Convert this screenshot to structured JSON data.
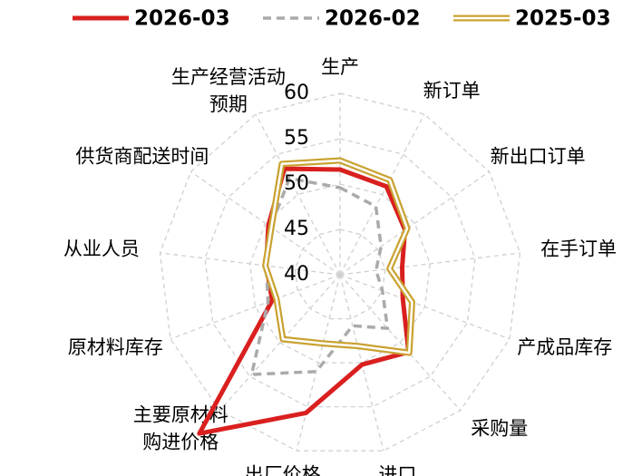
{
  "chart_data": {
    "type": "radar",
    "categories": [
      "生产",
      "新订单",
      "新出口订单",
      "在手订单",
      "产成品库存",
      "采购量",
      "进口",
      "出厂价格",
      "主要原材料\n购进价格",
      "原材料库存",
      "从业人员",
      "供货商配送时间",
      "生产经营活动\n预期"
    ],
    "series": [
      {
        "name": "2026-03",
        "color": "#d9201f",
        "style": "solid",
        "values": [
          51.6,
          51.0,
          48.7,
          46.9,
          47.4,
          51.4,
          50.2,
          55.7,
          63.4,
          48.0,
          48.2,
          49.6,
          53.2
        ]
      },
      {
        "name": "2026-02",
        "color": "#aaaaaa",
        "style": "dashed",
        "values": [
          49.6,
          48.5,
          45.5,
          44.0,
          45.0,
          47.9,
          45.8,
          51.0,
          54.7,
          48.5,
          48.2,
          49.3,
          52.0
        ]
      },
      {
        "name": "2025-03",
        "color": "#c9a232",
        "style": "double",
        "values": [
          52.6,
          51.8,
          49.0,
          45.5,
          48.5,
          51.5,
          48.1,
          47.8,
          49.5,
          47.5,
          48.3,
          49.2,
          53.8
        ]
      }
    ],
    "rlim": [
      40,
      60
    ],
    "rticks": [
      40,
      45,
      50,
      55,
      60
    ],
    "grid": true,
    "legend": "top"
  }
}
